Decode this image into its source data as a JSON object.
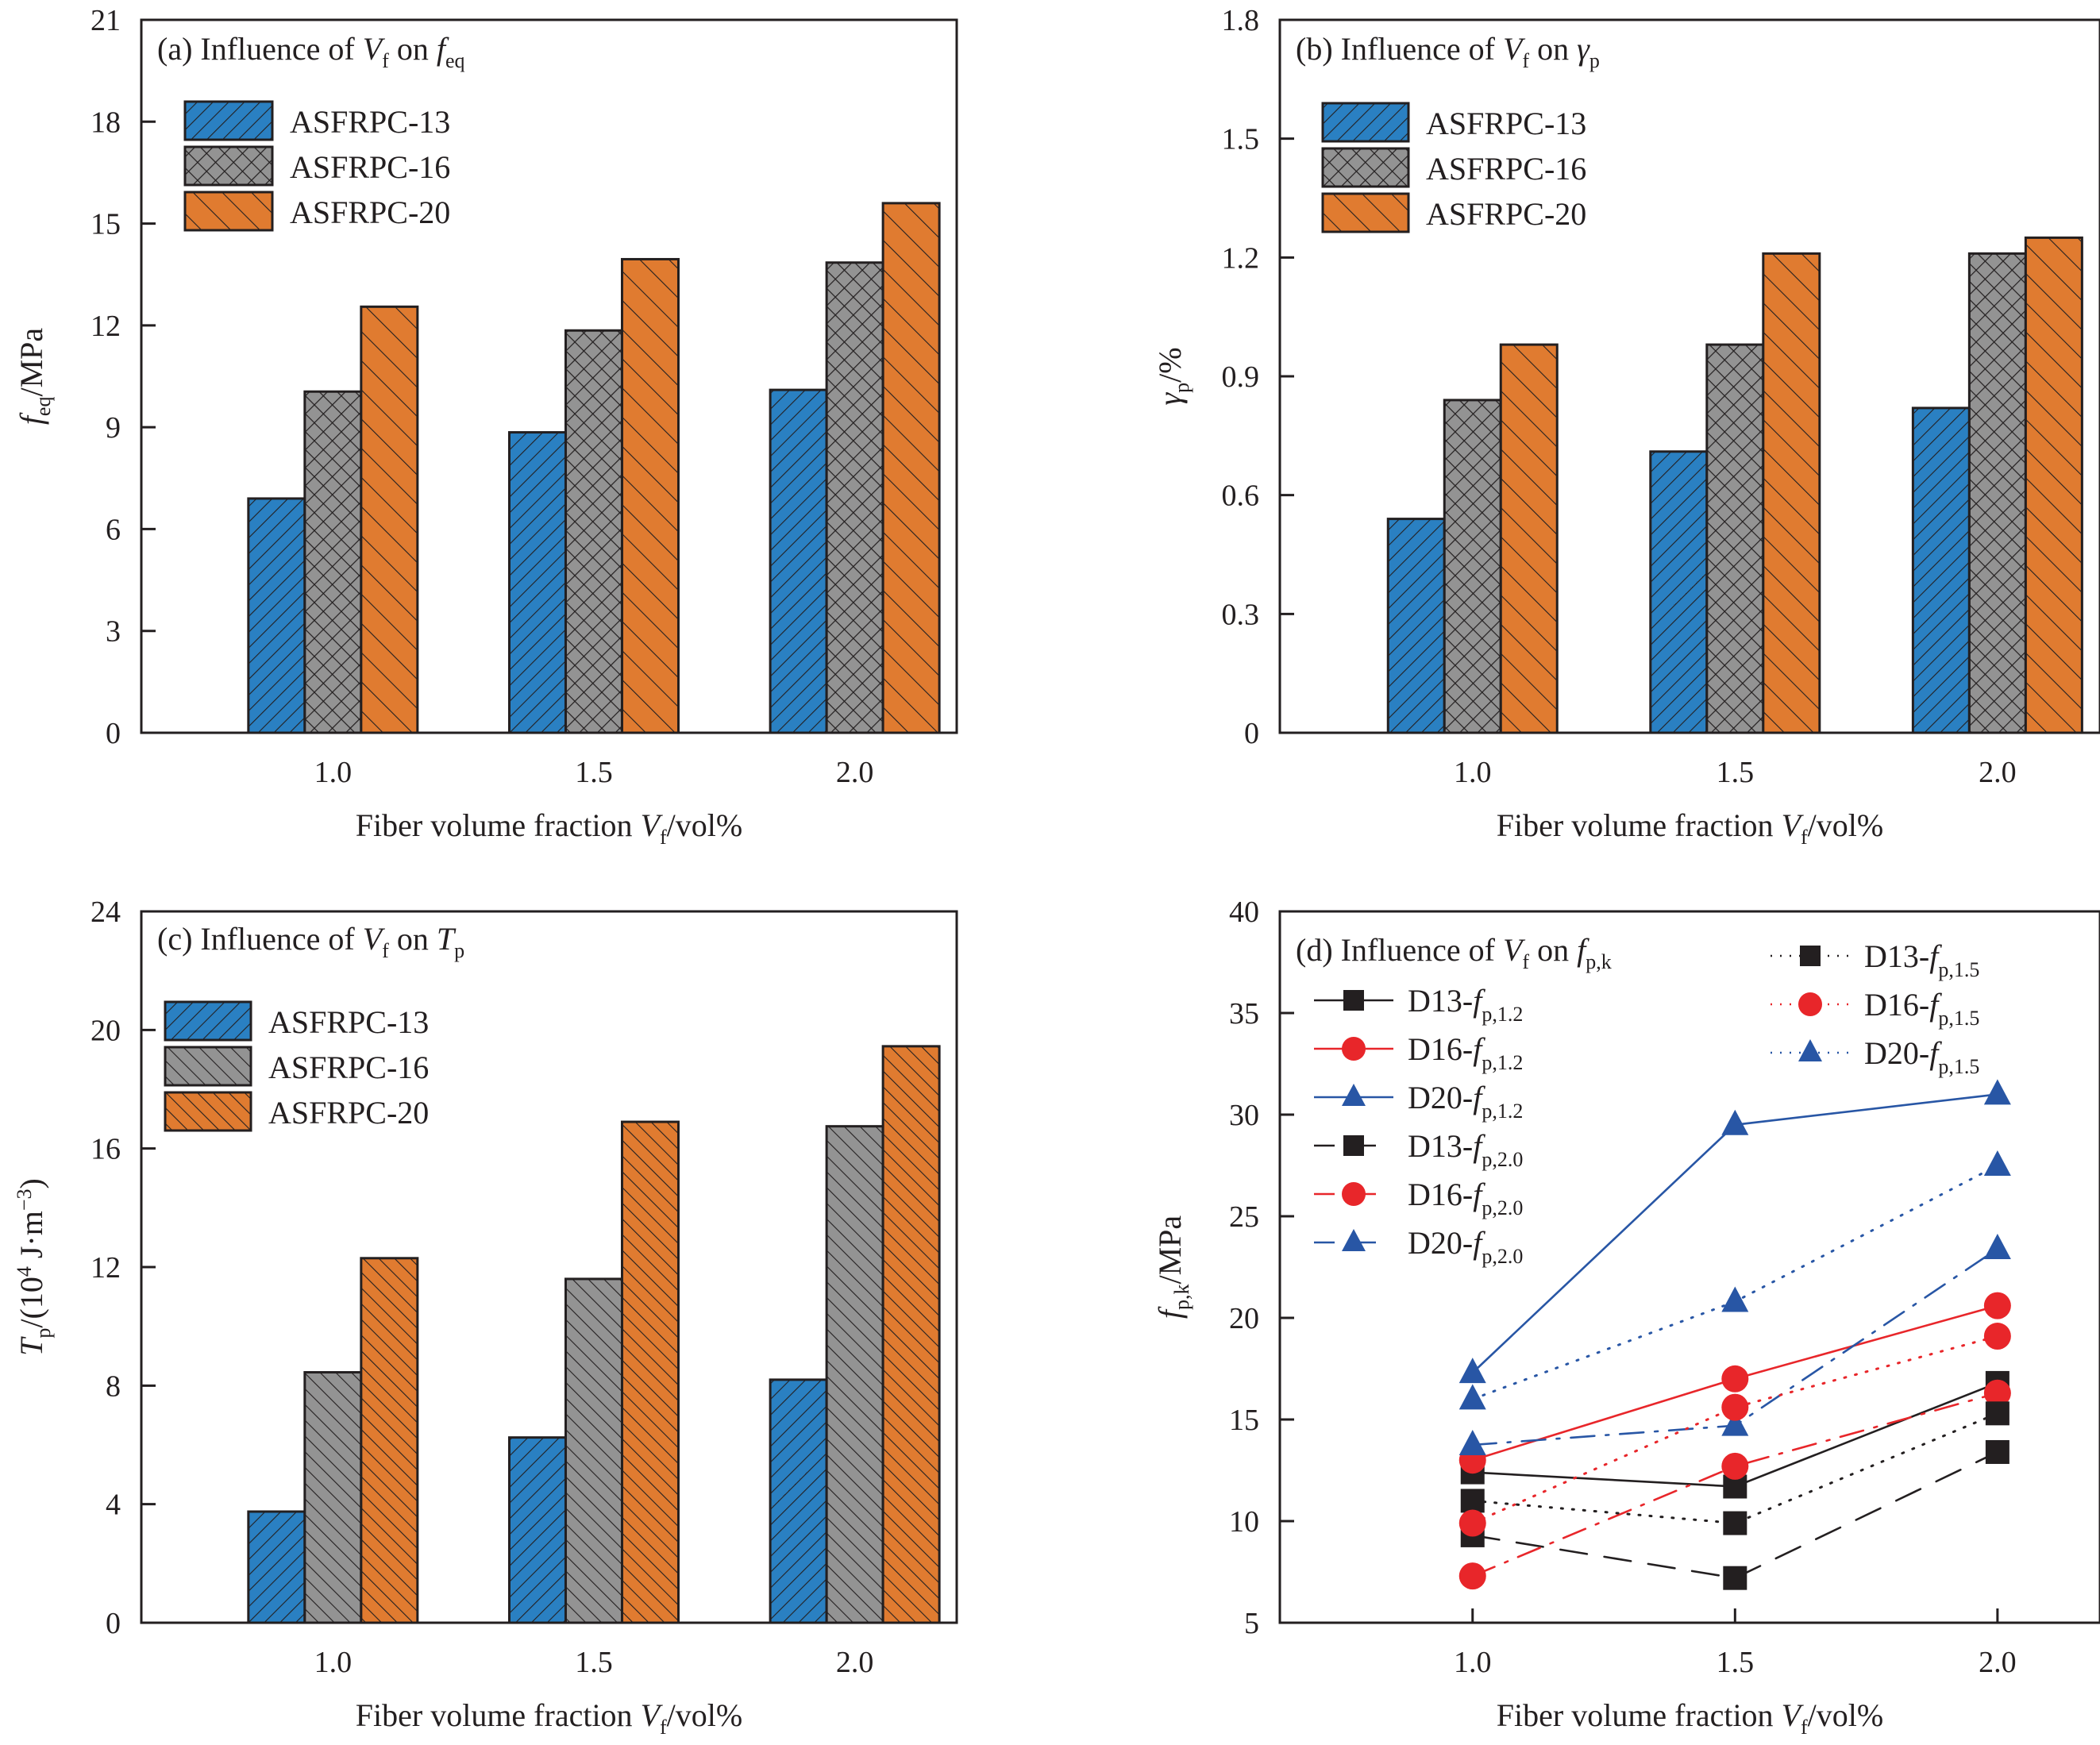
{
  "colors": {
    "asfrpc13": "#2a80c2",
    "asfrpc16": "#939393",
    "asfrpc20": "#e07b30",
    "d13": "#231f20",
    "d16": "#e8262a",
    "d20": "#2856a5",
    "axis": "#231f20"
  },
  "chart_data": [
    {
      "id": "a",
      "type": "bar",
      "title": "(a) Influence of V_f on f_eq",
      "title_parts": {
        "prefix": "(a) Influence of ",
        "var": "V",
        "var_sub": "f",
        "mid": " on ",
        "target": "f",
        "target_sub": "eq"
      },
      "xlabel": "Fiber volume fraction V_f/vol%",
      "ylabel": "f_eq/MPa",
      "ylabel_parts": {
        "var": "f",
        "sub": "eq",
        "unit": "/MPa"
      },
      "categories": [
        "1.0",
        "1.5",
        "2.0"
      ],
      "ylim": [
        0,
        21
      ],
      "yticks": [
        0,
        3,
        6,
        9,
        12,
        15,
        18,
        21
      ],
      "ytick_labels": [
        "0",
        "3",
        "6",
        "9",
        "12",
        "15",
        "18",
        "21"
      ],
      "legend_position": "top-left",
      "series": [
        {
          "name": "ASFRPC-13",
          "color_key": "asfrpc13",
          "hatch": "forward",
          "values": [
            6.9,
            8.85,
            10.1
          ]
        },
        {
          "name": "ASFRPC-16",
          "color_key": "asfrpc16",
          "hatch": "cross",
          "values": [
            10.05,
            11.85,
            13.85
          ]
        },
        {
          "name": "ASFRPC-20",
          "color_key": "asfrpc20",
          "hatch": "backward",
          "values": [
            12.55,
            13.95,
            15.6
          ]
        }
      ]
    },
    {
      "id": "b",
      "type": "bar",
      "title": "(b) Influence of V_f on γ_p",
      "title_parts": {
        "prefix": "(b) Influence of ",
        "var": "V",
        "var_sub": "f",
        "mid": " on ",
        "target": "γ",
        "target_sub": "p"
      },
      "xlabel": "Fiber volume fraction V_f/vol%",
      "ylabel": "γ_p/%",
      "ylabel_parts": {
        "var": "γ",
        "sub": "p",
        "unit": "/%"
      },
      "categories": [
        "1.0",
        "1.5",
        "2.0"
      ],
      "ylim": [
        0,
        1.8
      ],
      "yticks": [
        0,
        0.3,
        0.6,
        0.9,
        1.2,
        1.5,
        1.8
      ],
      "ytick_labels": [
        "0",
        "0.3",
        "0.6",
        "0.9",
        "1.2",
        "1.5",
        "1.8"
      ],
      "legend_position": "top-left",
      "series": [
        {
          "name": "ASFRPC-13",
          "color_key": "asfrpc13",
          "hatch": "forward",
          "values": [
            0.54,
            0.71,
            0.82
          ]
        },
        {
          "name": "ASFRPC-16",
          "color_key": "asfrpc16",
          "hatch": "cross",
          "values": [
            0.84,
            0.98,
            1.21
          ]
        },
        {
          "name": "ASFRPC-20",
          "color_key": "asfrpc20",
          "hatch": "backward",
          "values": [
            0.98,
            1.21,
            1.25
          ]
        }
      ]
    },
    {
      "id": "c",
      "type": "bar",
      "title": "(c) Influence of V_f on T_p",
      "title_parts": {
        "prefix": "(c) Influence of ",
        "var": "V",
        "var_sub": "f",
        "mid": " on ",
        "target": "T",
        "target_sub": "p"
      },
      "xlabel": "Fiber volume fraction V_f/vol%",
      "ylabel": "T_p/(10^4 J·m^-3)",
      "ylabel_parts": {
        "var": "T",
        "sub": "p",
        "unit_a": "/(10",
        "sup1": "4",
        "unit_b": " J·m",
        "sup2": "−3",
        "unit_c": ")"
      },
      "categories": [
        "1.0",
        "1.5",
        "2.0"
      ],
      "ylim": [
        0,
        24
      ],
      "yticks": [
        0,
        4,
        8,
        12,
        16,
        20,
        24
      ],
      "ytick_labels": [
        "0",
        "4",
        "8",
        "12",
        "16",
        "20",
        "24"
      ],
      "legend_position": "top-left",
      "series": [
        {
          "name": "ASFRPC-13",
          "color_key": "asfrpc13",
          "hatch": "forward",
          "values": [
            3.75,
            6.25,
            8.2
          ]
        },
        {
          "name": "ASFRPC-16",
          "color_key": "asfrpc16",
          "hatch": "backward",
          "values": [
            8.45,
            11.6,
            16.75
          ]
        },
        {
          "name": "ASFRPC-20",
          "color_key": "asfrpc20",
          "hatch": "backward",
          "values": [
            12.3,
            16.9,
            19.45
          ]
        }
      ]
    },
    {
      "id": "d",
      "type": "line",
      "title": "(d) Influence of V_f on f_p,k",
      "title_parts": {
        "prefix": "(d) Influence of ",
        "var": "V",
        "var_sub": "f",
        "mid": " on ",
        "target": "f",
        "target_sub": "p,k"
      },
      "xlabel": "Fiber volume fraction V_f/vol%",
      "ylabel": "f_p,k/MPa",
      "ylabel_parts": {
        "var": "f",
        "sub": "p,k",
        "unit": "/MPa"
      },
      "x": [
        1.0,
        1.5,
        2.0
      ],
      "categories": [
        "1.0",
        "1.5",
        "2.0"
      ],
      "ylim": [
        5,
        40
      ],
      "yticks": [
        5,
        10,
        15,
        20,
        25,
        30,
        35,
        40
      ],
      "ytick_labels": [
        "5",
        "10",
        "15",
        "20",
        "25",
        "30",
        "35",
        "40"
      ],
      "legend_position": "top-left and top-right",
      "series": [
        {
          "name": "D13-f_p,1.2",
          "label_main": "D13-",
          "label_var": "f",
          "label_sub": "p,1.2",
          "color_key": "d13",
          "marker": "square",
          "dash": "solid",
          "legend_col": "left",
          "values": [
            12.4,
            11.7,
            16.8
          ]
        },
        {
          "name": "D16-f_p,1.2",
          "label_main": "D16-",
          "label_var": "f",
          "label_sub": "p,1.2",
          "color_key": "d16",
          "marker": "circle",
          "dash": "solid",
          "legend_col": "left",
          "values": [
            13.0,
            17.0,
            20.6
          ]
        },
        {
          "name": "D20-f_p,1.2",
          "label_main": "D20-",
          "label_var": "f",
          "label_sub": "p,1.2",
          "color_key": "d20",
          "marker": "triangle",
          "dash": "solid",
          "legend_col": "left",
          "values": [
            17.3,
            29.5,
            31.0
          ]
        },
        {
          "name": "D13-f_p,2.0",
          "label_main": "D13-",
          "label_var": "f",
          "label_sub": "p,2.0",
          "color_key": "d13",
          "marker": "square",
          "dash": "dashed",
          "legend_col": "left",
          "values": [
            9.3,
            7.2,
            13.4
          ]
        },
        {
          "name": "D16-f_p,2.0",
          "label_main": "D16-",
          "label_var": "f",
          "label_sub": "p,2.0",
          "color_key": "d16",
          "marker": "circle",
          "dash": "dashdot",
          "legend_col": "left",
          "values": [
            7.3,
            12.7,
            16.3
          ]
        },
        {
          "name": "D20-f_p,2.0",
          "label_main": "D20-",
          "label_var": "f",
          "label_sub": "p,2.0",
          "color_key": "d20",
          "marker": "triangle",
          "dash": "dashdot",
          "legend_col": "left",
          "values": [
            13.75,
            14.7,
            23.4
          ]
        },
        {
          "name": "D13-f_p,1.5",
          "label_main": "D13-",
          "label_var": "f",
          "label_sub": "p,1.5",
          "color_key": "d13",
          "marker": "square",
          "dash": "dotted",
          "legend_col": "right",
          "values": [
            11.0,
            9.9,
            15.3
          ]
        },
        {
          "name": "D16-f_p,1.5",
          "label_main": "D16-",
          "label_var": "f",
          "label_sub": "p,1.5",
          "color_key": "d16",
          "marker": "circle",
          "dash": "dotted",
          "legend_col": "right",
          "values": [
            9.9,
            15.6,
            19.1
          ]
        },
        {
          "name": "D20-f_p,1.5",
          "label_main": "D20-",
          "label_var": "f",
          "label_sub": "p,1.5",
          "color_key": "d20",
          "marker": "triangle",
          "dash": "dotted",
          "legend_col": "right",
          "values": [
            16.0,
            20.8,
            27.5
          ]
        }
      ]
    }
  ],
  "xlabel_parts": {
    "prefix": "Fiber volume fraction ",
    "var": "V",
    "sub": "f",
    "suffix": "/vol%"
  }
}
